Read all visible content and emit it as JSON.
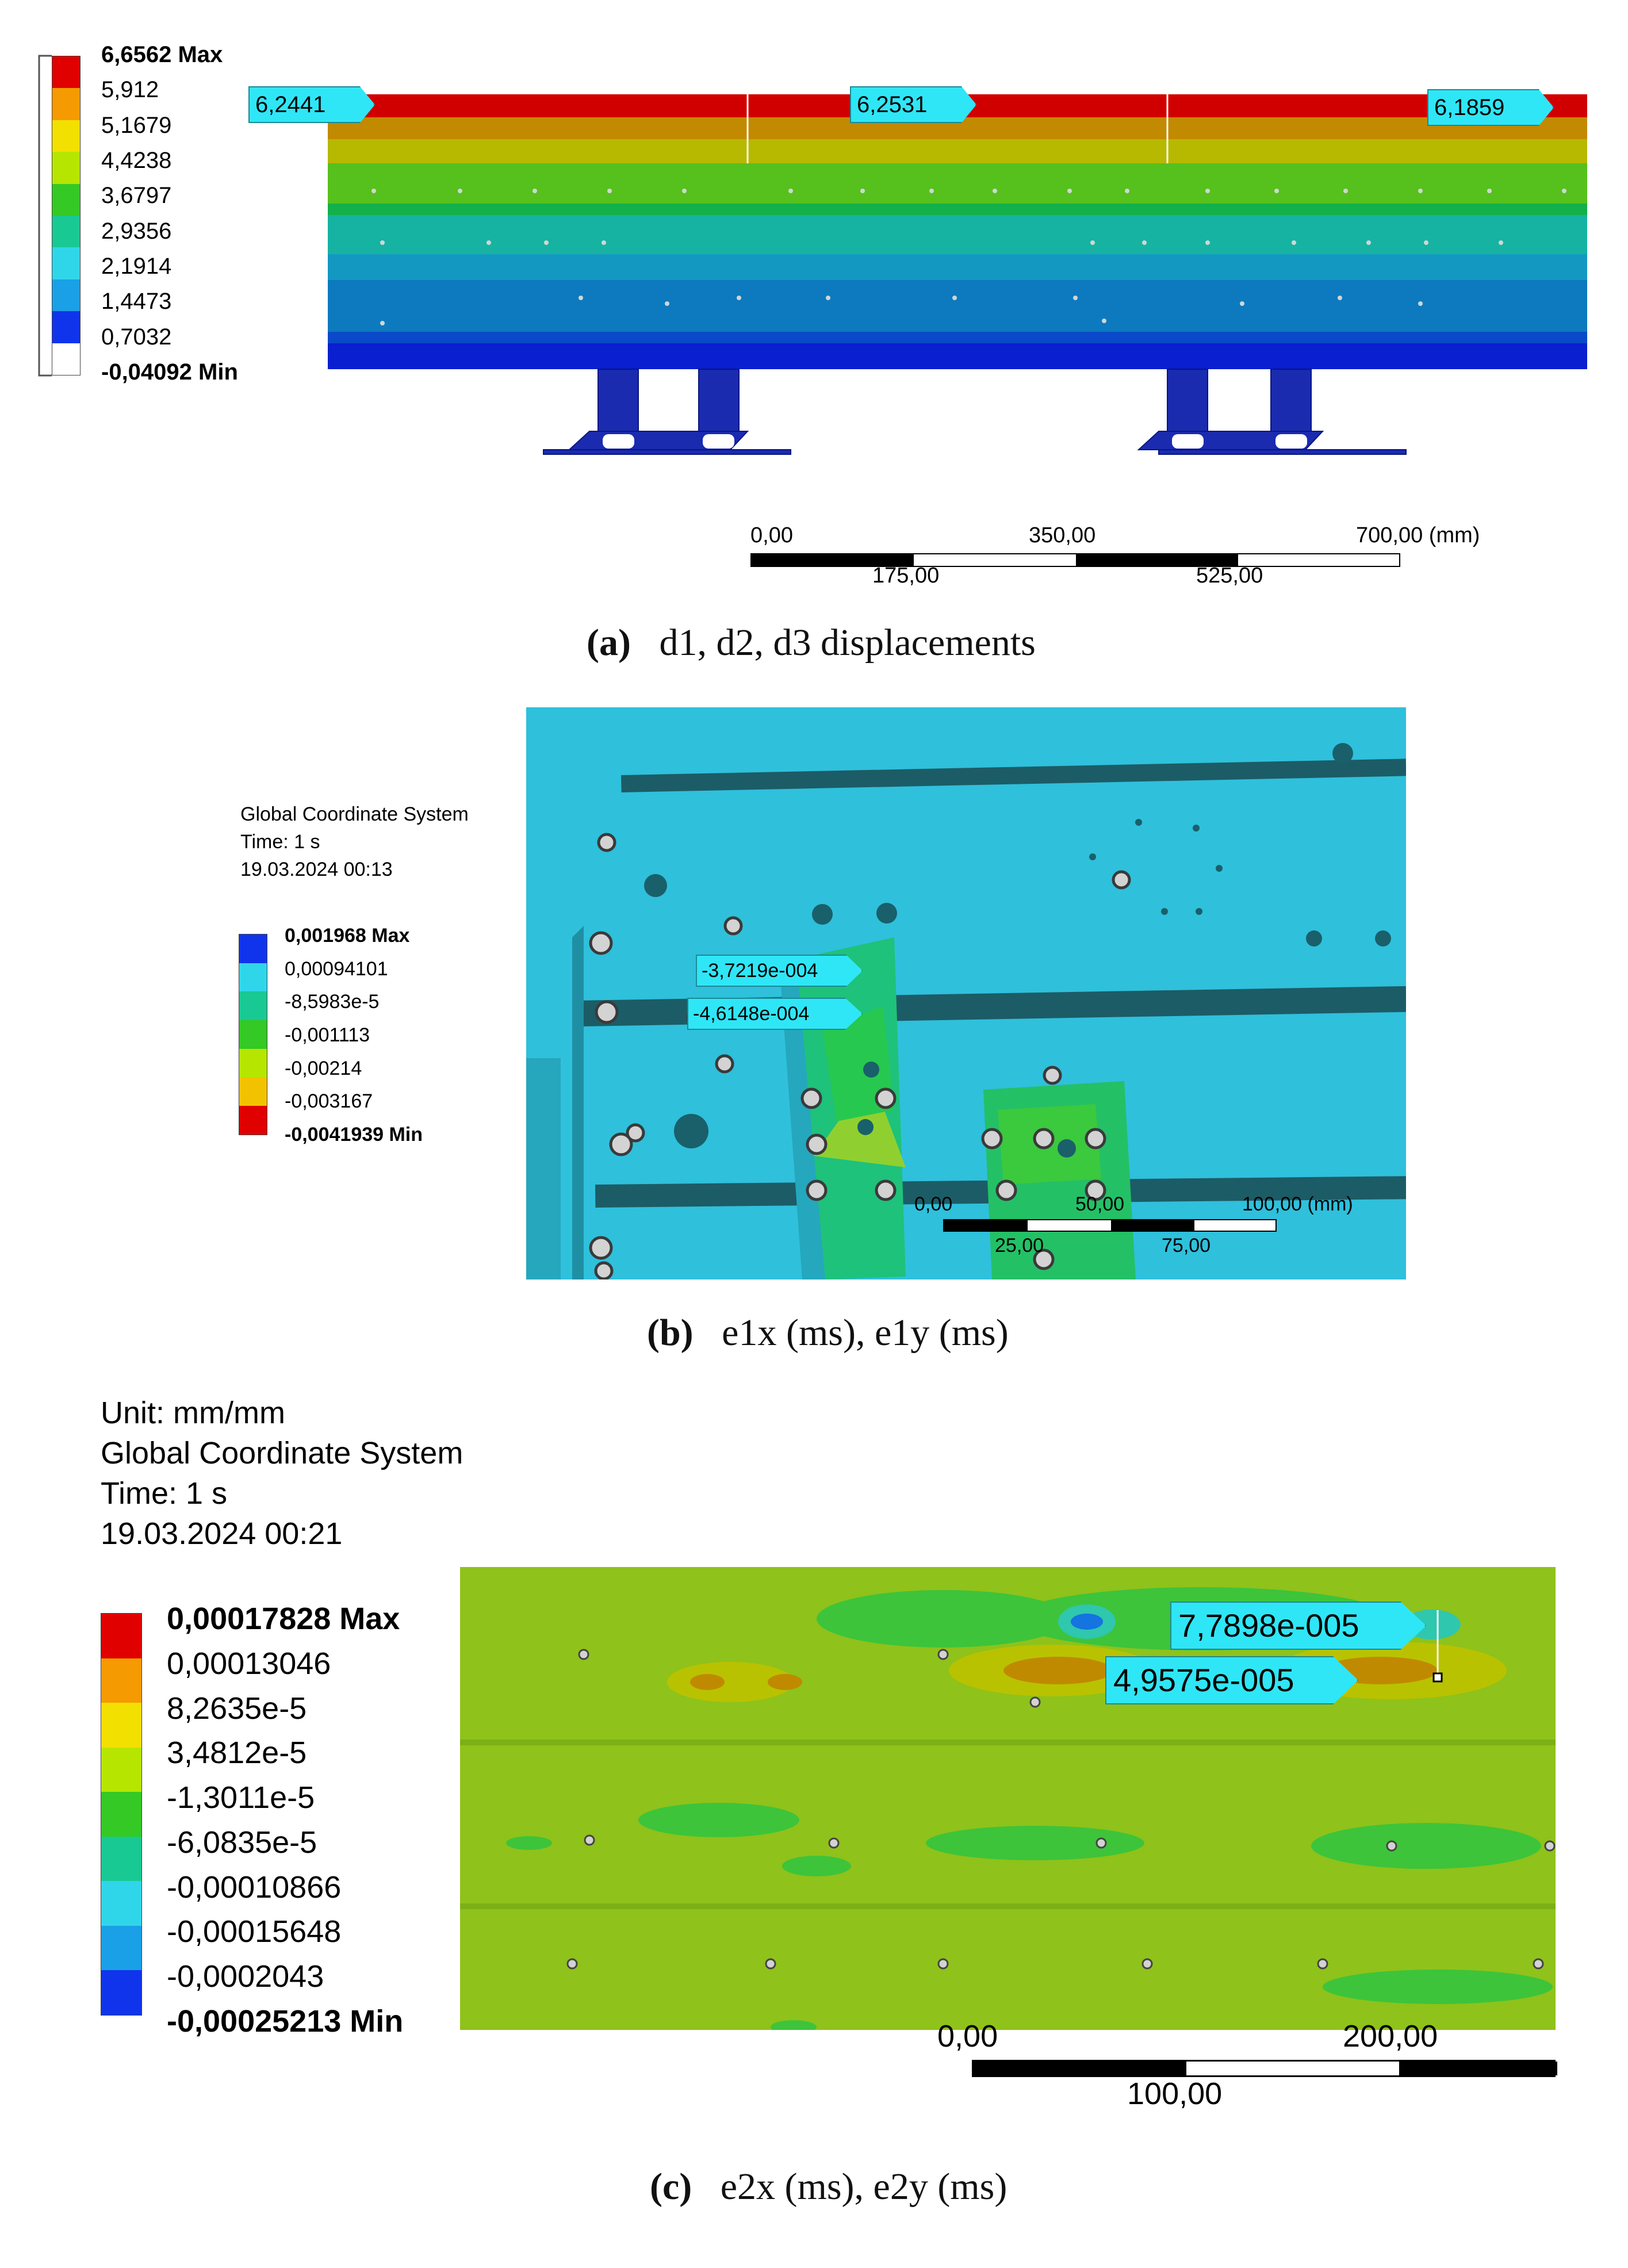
{
  "panel_a": {
    "legend": {
      "values": [
        "6,6562 Max",
        "5,912",
        "5,1679",
        "4,4238",
        "3,6797",
        "2,9356",
        "2,1914",
        "1,4473",
        "0,7032",
        "-0,04092 Min"
      ],
      "colors": [
        "#e00000",
        "#f59a00",
        "#f2e000",
        "#b6e600",
        "#34c924",
        "#19c994",
        "#2fd6ea",
        "#1aa0e6",
        "#1034ec",
        "#ffffff"
      ]
    },
    "probes": [
      "6,2441",
      "6,2531",
      "6,1859"
    ],
    "scale": {
      "ticks_top": [
        "0,00",
        "350,00",
        "700,00 (mm)"
      ],
      "ticks_bottom": [
        "175,00",
        "525,00"
      ]
    },
    "caption_letter": "(a)",
    "caption_text": "d1, d2, d3 displacements"
  },
  "panel_b": {
    "info": [
      "Global Coordinate System",
      "Time: 1 s",
      "19.03.2024 00:13"
    ],
    "legend": {
      "values": [
        "0,001968 Max",
        "0,00094101",
        "-8,5983e-5",
        "-0,001113",
        "-0,00214",
        "-0,003167",
        "-0,0041939 Min"
      ],
      "colors": [
        "#1034ec",
        "#2fd6ea",
        "#19c994",
        "#34c924",
        "#b6e600",
        "#f2c200",
        "#e00000"
      ]
    },
    "probes": [
      "-3,7219e-004",
      "-4,6148e-004"
    ],
    "scale": {
      "ticks_top": [
        "0,00",
        "50,00",
        "100,00 (mm)"
      ],
      "ticks_bottom": [
        "25,00",
        "75,00"
      ]
    },
    "caption_letter": "(b)",
    "caption_text": "e1x (ms), e1y (ms)"
  },
  "panel_c": {
    "info": [
      "Unit: mm/mm",
      "Global Coordinate System",
      "Time: 1 s",
      "19.03.2024 00:21"
    ],
    "legend": {
      "values": [
        "0,00017828 Max",
        "0,00013046",
        "8,2635e-5",
        "3,4812e-5",
        "-1,3011e-5",
        "-6,0835e-5",
        "-0,00010866",
        "-0,00015648",
        "-0,0002043",
        "-0,00025213 Min"
      ],
      "colors": [
        "#e00000",
        "#f59a00",
        "#f2e000",
        "#b6e600",
        "#34c924",
        "#19c994",
        "#2fd6ea",
        "#1aa0e6",
        "#1034ec"
      ]
    },
    "probes": [
      "7,7898e-005",
      "4,9575e-005"
    ],
    "scale": {
      "ticks_top": [
        "0,00",
        "200,00"
      ],
      "ticks_bottom": [
        "100,00"
      ]
    },
    "caption_letter": "(c)",
    "caption_text": "e2x (ms), e2y (ms)"
  }
}
